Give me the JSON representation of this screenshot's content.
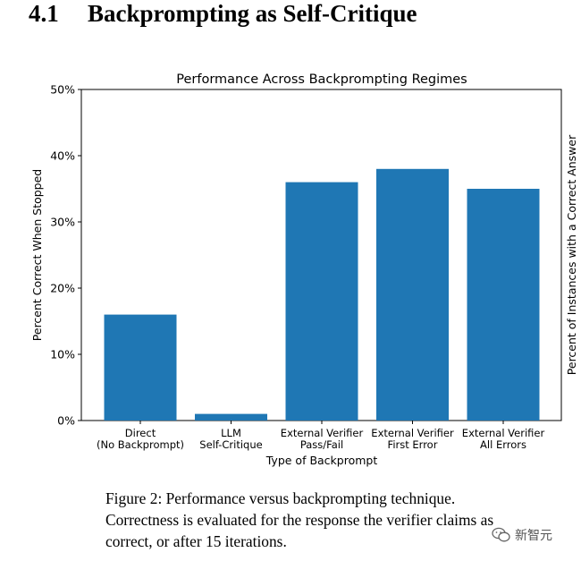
{
  "section": {
    "number": "4.1",
    "title": "Backprompting as Self-Critique"
  },
  "chart_data": {
    "type": "bar",
    "title": "Performance Across Backprompting Regimes",
    "xlabel": "Type of Backprompt",
    "ylabel": "Percent Correct When Stopped",
    "ylabel_right": "Percent of Instances with a Correct Answer",
    "categories": [
      [
        "Direct",
        "(No Backprompt)"
      ],
      [
        "LLM",
        "Self-Critique"
      ],
      [
        "External Verifier",
        "Pass/Fail"
      ],
      [
        "External Verifier",
        "First Error"
      ],
      [
        "External Verifier",
        "All Errors"
      ]
    ],
    "values": [
      16,
      1,
      36,
      38,
      35
    ],
    "ylim": [
      0,
      50
    ],
    "yticks": [
      0,
      10,
      20,
      30,
      40,
      50
    ],
    "ytick_labels": [
      "0%",
      "10%",
      "20%",
      "30%",
      "40%",
      "50%"
    ],
    "bar_color": "#1f77b4",
    "grid": false,
    "legend": false
  },
  "caption": "Figure 2: Performance versus backprompting technique. Correctness is evaluated for the response the verifier claims as correct, or after 15 iterations.",
  "watermark": {
    "text": "新智元",
    "icon": "wechat-icon"
  }
}
